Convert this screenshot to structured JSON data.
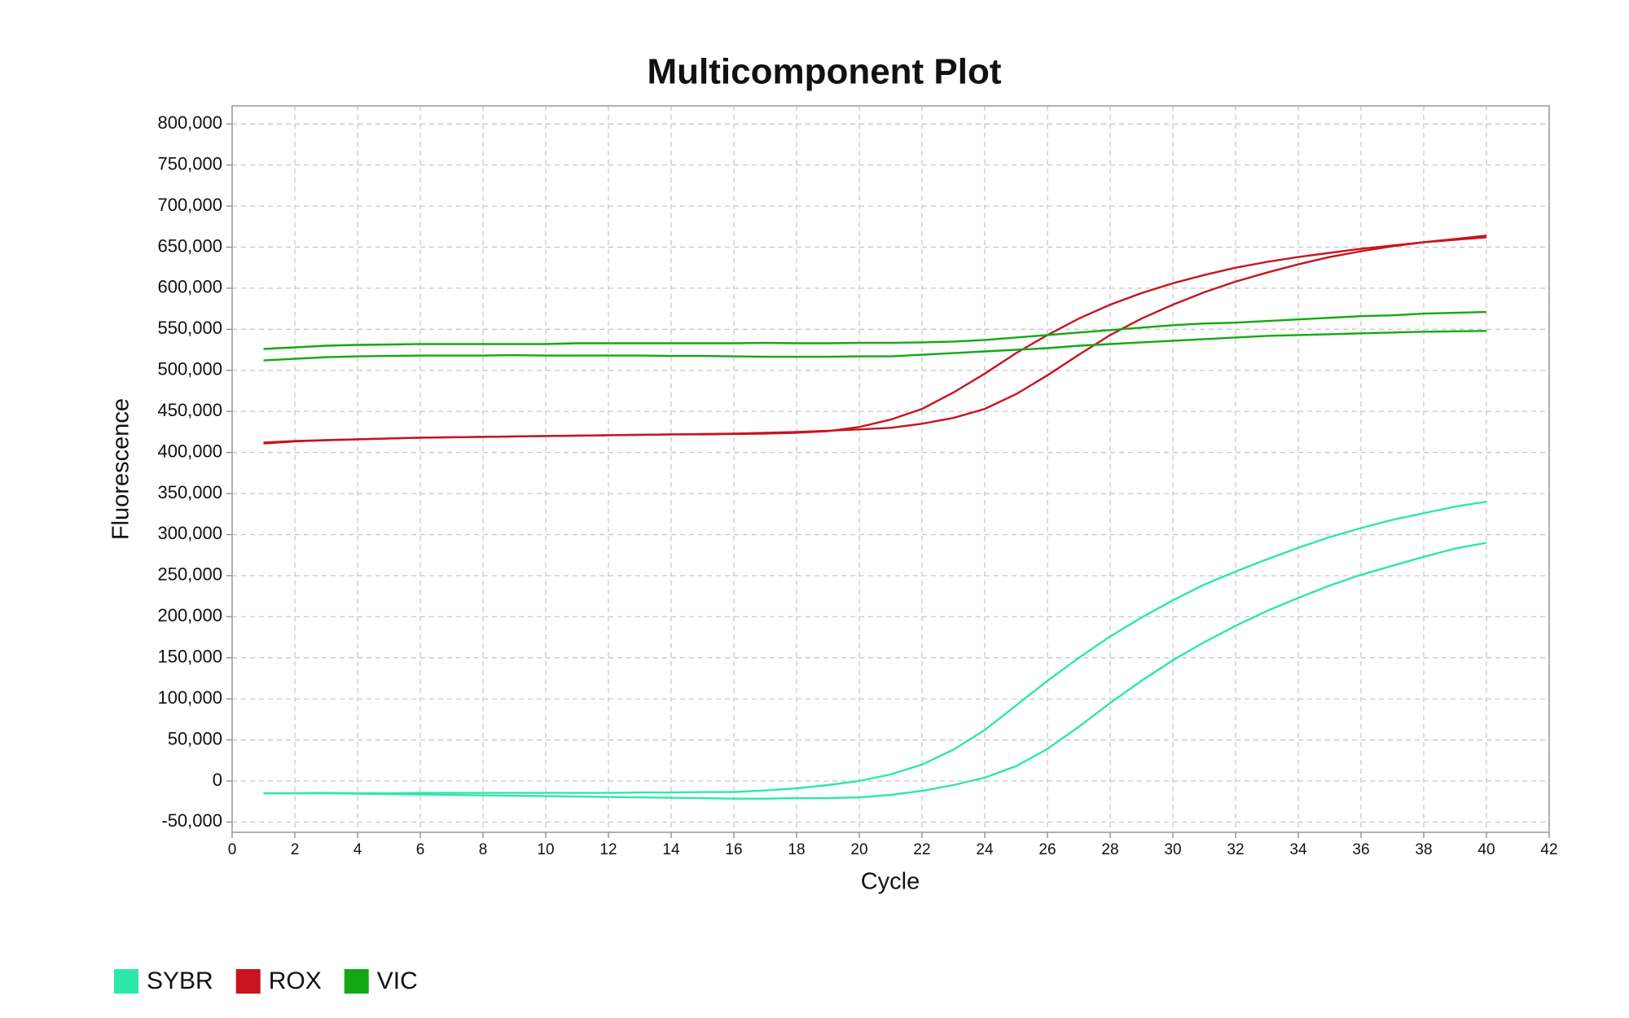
{
  "chart_data": {
    "type": "line",
    "title": "Multicomponent Plot",
    "x_label": "Cycle",
    "y_label": "Fluorescence",
    "x": [
      1,
      2,
      3,
      4,
      5,
      6,
      7,
      8,
      9,
      10,
      11,
      12,
      13,
      14,
      15,
      16,
      17,
      18,
      19,
      20,
      21,
      22,
      23,
      24,
      25,
      26,
      27,
      28,
      29,
      30,
      31,
      32,
      33,
      34,
      35,
      36,
      37,
      38,
      39,
      40
    ],
    "series": [
      {
        "name": "SYBR",
        "color": "#2de8a8",
        "values": [
          -15000,
          -15000,
          -14500,
          -15000,
          -15000,
          -14500,
          -14500,
          -14500,
          -14500,
          -14500,
          -14500,
          -14500,
          -14000,
          -14000,
          -13500,
          -13500,
          -11500,
          -9000,
          -5000,
          0,
          8000,
          20000,
          38000,
          62000,
          92000,
          122000,
          150000,
          176000,
          199000,
          220000,
          239000,
          255000,
          270000,
          284000,
          297000,
          308000,
          318000,
          326000,
          334000,
          340000
        ]
      },
      {
        "name": "SYBR",
        "color": "#2de8a8",
        "values": [
          -15000,
          -15000,
          -15000,
          -15500,
          -16000,
          -16500,
          -17000,
          -17500,
          -18000,
          -18500,
          -19000,
          -19500,
          -20000,
          -20500,
          -21000,
          -21500,
          -21500,
          -21000,
          -21000,
          -20000,
          -17000,
          -12000,
          -5000,
          4000,
          18000,
          39000,
          66000,
          95000,
          122000,
          147000,
          169000,
          189000,
          207000,
          223000,
          238000,
          251000,
          262000,
          273000,
          283000,
          290000
        ]
      },
      {
        "name": "ROX",
        "color": "#c8141e",
        "values": [
          412000,
          414000,
          415000,
          416000,
          417000,
          418000,
          418500,
          419000,
          419500,
          420000,
          420500,
          421000,
          421500,
          422000,
          422000,
          422500,
          423000,
          424000,
          426000,
          431000,
          440000,
          453000,
          473000,
          496000,
          521000,
          543000,
          563000,
          580000,
          594000,
          606000,
          616000,
          625000,
          632000,
          638000,
          643000,
          648000,
          652000,
          656000,
          659000,
          662000
        ]
      },
      {
        "name": "ROX",
        "color": "#c8141e",
        "values": [
          411000,
          413500,
          415000,
          416000,
          417000,
          418000,
          418500,
          419000,
          419500,
          420000,
          420500,
          421000,
          421500,
          422000,
          422500,
          423000,
          424000,
          425000,
          426500,
          428000,
          430000,
          435000,
          442000,
          453000,
          471000,
          494000,
          519000,
          543000,
          563000,
          580000,
          595000,
          608000,
          619000,
          629000,
          638000,
          645000,
          651000,
          656000,
          660000,
          664000
        ]
      },
      {
        "name": "VIC",
        "color": "#13a813",
        "values": [
          526000,
          528000,
          530000,
          531000,
          531500,
          532000,
          532000,
          532000,
          532000,
          532000,
          533000,
          533000,
          533000,
          533000,
          533000,
          533000,
          533500,
          533000,
          533000,
          533500,
          533500,
          534000,
          535000,
          537000,
          540000,
          543000,
          546000,
          549000,
          552000,
          555000,
          557000,
          558000,
          560000,
          562000,
          564000,
          566000,
          567000,
          569000,
          570000,
          571000
        ]
      },
      {
        "name": "VIC",
        "color": "#13a813",
        "values": [
          512000,
          514000,
          516000,
          517000,
          517500,
          518000,
          518000,
          518000,
          518500,
          518000,
          518000,
          518000,
          518000,
          517500,
          517500,
          517000,
          516500,
          516500,
          516500,
          517000,
          517000,
          519000,
          521000,
          523000,
          525000,
          527000,
          530000,
          532000,
          534000,
          536000,
          538000,
          540000,
          542000,
          543000,
          544000,
          545000,
          546000,
          547000,
          547500,
          548000
        ]
      }
    ],
    "xlim": [
      0,
      42
    ],
    "xticks": [
      0,
      2,
      4,
      6,
      8,
      10,
      12,
      14,
      16,
      18,
      20,
      22,
      24,
      26,
      28,
      30,
      32,
      34,
      36,
      38,
      40,
      42
    ],
    "ylim": [
      -62500,
      822000
    ],
    "yticks": [
      {
        "value": -50000,
        "label": "-50,000"
      },
      0,
      {
        "value": 50000,
        "label": "50,000"
      },
      {
        "value": 100000,
        "label": "100,000"
      },
      {
        "value": 150000,
        "label": "150,000"
      },
      {
        "value": 200000,
        "label": "200,000"
      },
      {
        "value": 250000,
        "label": "250,000"
      },
      {
        "value": 300000,
        "label": "300,000"
      },
      {
        "value": 350000,
        "label": "350,000"
      },
      {
        "value": 400000,
        "label": "400,000"
      },
      {
        "value": 450000,
        "label": "450,000"
      },
      {
        "value": 500000,
        "label": "500,000"
      },
      {
        "value": 550000,
        "label": "550,000"
      },
      {
        "value": 600000,
        "label": "600,000"
      },
      {
        "value": 650000,
        "label": "650,000"
      },
      {
        "value": 700000,
        "label": "700,000"
      },
      {
        "value": 750000,
        "label": "750,000"
      },
      {
        "value": 800000,
        "label": "800,000"
      }
    ],
    "grid": true,
    "legend": "bottom-left"
  }
}
